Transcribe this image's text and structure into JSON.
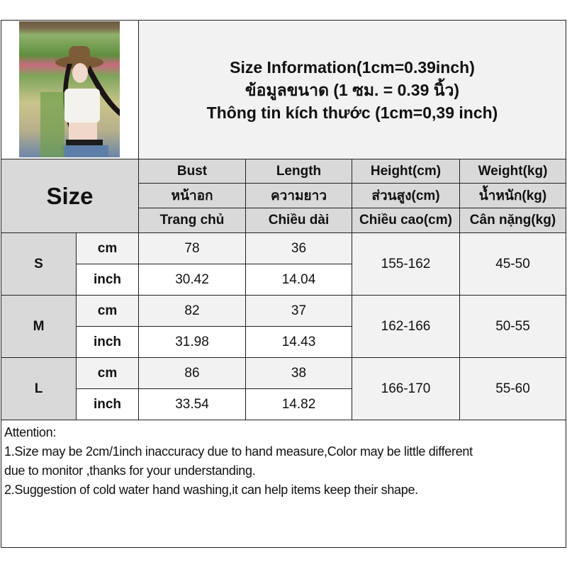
{
  "title": {
    "line1": "Size Information(1cm=0.39inch)",
    "line2": "ข้อมูลขนาด (1 ซม. = 0.39 นิ้ว)",
    "line3": "Thông tin kích thước (1cm=0,39 inch)"
  },
  "table": {
    "size_label": "Size",
    "columns": [
      {
        "en": "Bust",
        "th": "หน้าอก",
        "vi": "Trang chủ"
      },
      {
        "en": "Length",
        "th": "ความยาว",
        "vi": "Chiều dài"
      },
      {
        "en": "Height(cm)",
        "th": "ส่วนสูง(cm)",
        "vi": "Chiều cao(cm)"
      },
      {
        "en": "Weight(kg)",
        "th": "น้ำหนัก(kg)",
        "vi": "Cân nặng(kg)"
      }
    ],
    "units": {
      "cm": "cm",
      "inch": "inch"
    },
    "rows": [
      {
        "size": "S",
        "cm": {
          "bust": "78",
          "length": "36"
        },
        "inch": {
          "bust": "30.42",
          "length": "14.04"
        },
        "height": "155-162",
        "weight": "45-50"
      },
      {
        "size": "M",
        "cm": {
          "bust": "82",
          "length": "37"
        },
        "inch": {
          "bust": "31.98",
          "length": "14.43"
        },
        "height": "162-166",
        "weight": "50-55"
      },
      {
        "size": "L",
        "cm": {
          "bust": "86",
          "length": "38"
        },
        "inch": {
          "bust": "33.54",
          "length": "14.82"
        },
        "height": "166-170",
        "weight": "55-60"
      }
    ]
  },
  "attention": {
    "heading": "Attention:",
    "line1a": "1.Size may be 2cm/1inch inaccuracy due to hand measure,Color may be little different",
    "line1b": "due to monitor ,thanks for your understanding.",
    "line2": "2.Suggestion of cold water hand washing,it can help items keep their shape."
  }
}
